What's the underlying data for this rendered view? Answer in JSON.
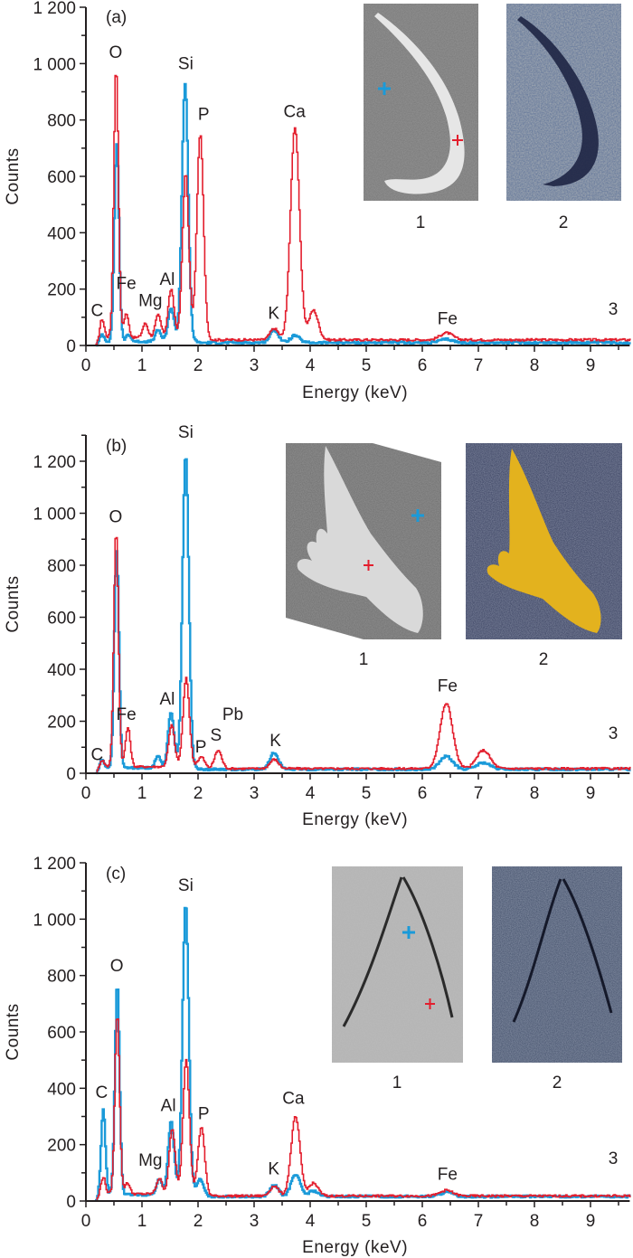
{
  "figure": {
    "colors": {
      "red_series": "#e31e2d",
      "blue_series": "#1a9ad9",
      "axis": "#231f20"
    }
  },
  "chart_data": [
    {
      "type": "line",
      "panel_label": "(a)",
      "xlabel": "Energy (keV)",
      "ylabel": "Counts",
      "xlim": [
        0,
        9.7
      ],
      "ylim": [
        0,
        1200
      ],
      "x_ticks": [
        "0",
        "1",
        "2",
        "3",
        "4",
        "5",
        "6",
        "7",
        "8",
        "9"
      ],
      "y_ticks": [
        "0",
        "200",
        "400",
        "600",
        "800",
        "1 000",
        "1 200"
      ],
      "inset_labels": [
        "1",
        "2",
        "3"
      ],
      "element_labels": [
        {
          "text": "O",
          "x": 0.53,
          "y": 1020
        },
        {
          "text": "Si",
          "x": 1.78,
          "y": 980
        },
        {
          "text": "P",
          "x": 2.1,
          "y": 800
        },
        {
          "text": "Ca",
          "x": 3.72,
          "y": 810
        },
        {
          "text": "C",
          "x": 0.2,
          "y": 105
        },
        {
          "text": "Fe",
          "x": 0.72,
          "y": 200
        },
        {
          "text": "Mg",
          "x": 1.15,
          "y": 140
        },
        {
          "text": "Al",
          "x": 1.45,
          "y": 215
        },
        {
          "text": "K",
          "x": 3.35,
          "y": 95
        },
        {
          "text": "Fe",
          "x": 6.45,
          "y": 75
        }
      ],
      "series": [
        {
          "name": "red point",
          "color": "red",
          "baseline": 20,
          "peaks": [
            {
              "energy": 0.28,
              "counts": 65
            },
            {
              "energy": 0.53,
              "counts": 955
            },
            {
              "energy": 0.71,
              "counts": 85
            },
            {
              "energy": 1.05,
              "counts": 50
            },
            {
              "energy": 1.28,
              "counts": 80
            },
            {
              "energy": 1.51,
              "counts": 170
            },
            {
              "energy": 1.77,
              "counts": 580
            },
            {
              "energy": 2.03,
              "counts": 730
            },
            {
              "energy": 3.35,
              "counts": 40
            },
            {
              "energy": 3.72,
              "counts": 755
            },
            {
              "energy": 4.05,
              "counts": 105
            },
            {
              "energy": 6.42,
              "counts": 25
            }
          ]
        },
        {
          "name": "blue point",
          "color": "blue",
          "baseline": 10,
          "peaks": [
            {
              "energy": 0.28,
              "counts": 25
            },
            {
              "energy": 0.54,
              "counts": 700
            },
            {
              "energy": 0.75,
              "counts": 25
            },
            {
              "energy": 1.28,
              "counts": 40
            },
            {
              "energy": 1.51,
              "counts": 120
            },
            {
              "energy": 1.76,
              "counts": 915
            },
            {
              "energy": 3.35,
              "counts": 45
            },
            {
              "energy": 3.72,
              "counts": 25
            },
            {
              "energy": 6.42,
              "counts": 12
            }
          ]
        }
      ]
    },
    {
      "type": "line",
      "panel_label": "(b)",
      "xlabel": "Energy (keV)",
      "ylabel": "Counts",
      "xlim": [
        0,
        9.7
      ],
      "ylim": [
        0,
        1300
      ],
      "x_ticks": [
        "0",
        "1",
        "2",
        "3",
        "4",
        "5",
        "6",
        "7",
        "8",
        "9"
      ],
      "y_ticks": [
        "0",
        "200",
        "400",
        "600",
        "800",
        "1 000",
        "1 200"
      ],
      "inset_labels": [
        "1",
        "2",
        "3"
      ],
      "element_labels": [
        {
          "text": "Si",
          "x": 1.78,
          "y": 1290
        },
        {
          "text": "O",
          "x": 0.53,
          "y": 965
        },
        {
          "text": "Al",
          "x": 1.45,
          "y": 265
        },
        {
          "text": "Fe",
          "x": 0.72,
          "y": 205
        },
        {
          "text": "C",
          "x": 0.2,
          "y": 50
        },
        {
          "text": "P",
          "x": 2.05,
          "y": 80
        },
        {
          "text": "S",
          "x": 2.32,
          "y": 125
        },
        {
          "text": "Pb",
          "x": 2.62,
          "y": 205
        },
        {
          "text": "K",
          "x": 3.38,
          "y": 105
        },
        {
          "text": "Fe",
          "x": 6.45,
          "y": 315
        }
      ],
      "series": [
        {
          "name": "red point",
          "color": "red",
          "baseline": 18,
          "peaks": [
            {
              "energy": 0.28,
              "counts": 25
            },
            {
              "energy": 0.53,
              "counts": 905
            },
            {
              "energy": 0.74,
              "counts": 150
            },
            {
              "energy": 1.52,
              "counts": 160
            },
            {
              "energy": 1.78,
              "counts": 340
            },
            {
              "energy": 2.05,
              "counts": 45
            },
            {
              "energy": 2.35,
              "counts": 70
            },
            {
              "energy": 3.35,
              "counts": 35
            },
            {
              "energy": 6.42,
              "counts": 250
            },
            {
              "energy": 7.08,
              "counts": 70
            }
          ]
        },
        {
          "name": "blue point",
          "color": "blue",
          "baseline": 15,
          "peaks": [
            {
              "energy": 0.28,
              "counts": 30
            },
            {
              "energy": 0.54,
              "counts": 830
            },
            {
              "energy": 1.28,
              "counts": 45
            },
            {
              "energy": 1.51,
              "counts": 215
            },
            {
              "energy": 1.77,
              "counts": 1205
            },
            {
              "energy": 3.35,
              "counts": 65
            },
            {
              "energy": 6.42,
              "counts": 50
            },
            {
              "energy": 7.08,
              "counts": 25
            }
          ]
        }
      ]
    },
    {
      "type": "line",
      "panel_label": "(c)",
      "xlabel": "Energy (keV)",
      "ylabel": "Counts",
      "xlim": [
        0,
        9.7
      ],
      "ylim": [
        0,
        1200
      ],
      "x_ticks": [
        "0",
        "1",
        "2",
        "3",
        "4",
        "5",
        "6",
        "7",
        "8",
        "9"
      ],
      "y_ticks": [
        "0",
        "200",
        "400",
        "600",
        "800",
        "1 000",
        "1 200"
      ],
      "inset_labels": [
        "1",
        "2",
        "3"
      ],
      "element_labels": [
        {
          "text": "Si",
          "x": 1.78,
          "y": 1100
        },
        {
          "text": "O",
          "x": 0.55,
          "y": 815
        },
        {
          "text": "C",
          "x": 0.28,
          "y": 365
        },
        {
          "text": "Al",
          "x": 1.47,
          "y": 320
        },
        {
          "text": "P",
          "x": 2.1,
          "y": 290
        },
        {
          "text": "Ca",
          "x": 3.7,
          "y": 345
        },
        {
          "text": "Mg",
          "x": 1.15,
          "y": 125
        },
        {
          "text": "K",
          "x": 3.35,
          "y": 95
        },
        {
          "text": "Fe",
          "x": 6.45,
          "y": 75
        }
      ],
      "series": [
        {
          "name": "red point",
          "color": "red",
          "baseline": 18,
          "peaks": [
            {
              "energy": 0.3,
              "counts": 60
            },
            {
              "energy": 0.55,
              "counts": 640
            },
            {
              "energy": 0.73,
              "counts": 40
            },
            {
              "energy": 1.3,
              "counts": 55
            },
            {
              "energy": 1.53,
              "counts": 230
            },
            {
              "energy": 1.78,
              "counts": 480
            },
            {
              "energy": 2.05,
              "counts": 245
            },
            {
              "energy": 3.35,
              "counts": 35
            },
            {
              "energy": 3.73,
              "counts": 280
            },
            {
              "energy": 4.05,
              "counts": 45
            },
            {
              "energy": 6.42,
              "counts": 20
            }
          ]
        },
        {
          "name": "blue point",
          "color": "blue",
          "baseline": 16,
          "peaks": [
            {
              "energy": 0.3,
              "counts": 300
            },
            {
              "energy": 0.55,
              "counts": 750
            },
            {
              "energy": 1.3,
              "counts": 55
            },
            {
              "energy": 1.51,
              "counts": 260
            },
            {
              "energy": 1.77,
              "counts": 1030
            },
            {
              "energy": 2.03,
              "counts": 60
            },
            {
              "energy": 3.35,
              "counts": 40
            },
            {
              "energy": 3.73,
              "counts": 80
            },
            {
              "energy": 4.05,
              "counts": 20
            },
            {
              "energy": 6.42,
              "counts": 15
            }
          ]
        }
      ]
    }
  ]
}
